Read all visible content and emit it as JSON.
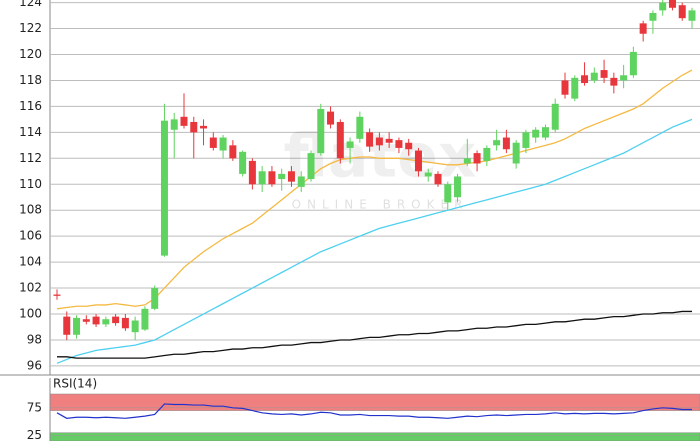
{
  "chart_data": [
    {
      "type": "candlestick",
      "ylim": [
        95.3,
        124.2
      ],
      "yticks": [
        96,
        98,
        100,
        102,
        104,
        106,
        108,
        110,
        112,
        114,
        116,
        118,
        120,
        122,
        124
      ],
      "grid": true,
      "watermark": "flatex",
      "watermark_sub": "ONLINE BROKER",
      "up_color": "#5fd35f",
      "down_color": "#e8373c",
      "open": [
        101.5,
        99.8,
        98.4,
        99.6,
        99.8,
        99.2,
        99.8,
        99.7,
        98.6,
        98.8,
        100.4,
        104.5,
        114.2,
        115.2,
        114.8,
        114.5,
        113.6,
        112.6,
        113.0,
        110.8,
        111.8,
        110.0,
        111.0,
        110.4,
        111.0,
        109.8,
        110.4,
        112.4,
        115.6,
        114.8,
        112.8,
        113.5,
        114.0,
        113.6,
        113.5,
        113.4,
        113.2,
        112.6,
        110.6,
        110.8,
        108.6,
        109.0,
        111.6,
        112.4,
        111.8,
        113.0,
        113.6,
        111.6,
        112.8,
        113.6,
        113.6,
        114.2,
        118.0,
        116.6,
        118.4,
        118.0,
        118.8,
        118.2,
        118.0,
        118.4,
        122.4,
        122.6,
        123.4,
        124.2,
        123.8,
        122.6
      ],
      "high": [
        101.9,
        100.2,
        99.9,
        99.9,
        100.0,
        99.8,
        100.0,
        100.0,
        99.8,
        100.6,
        102.2,
        116.2,
        115.5,
        117.0,
        115.2,
        115.0,
        114.0,
        113.8,
        113.4,
        112.6,
        112.0,
        111.4,
        111.4,
        111.2,
        111.4,
        111.0,
        112.6,
        116.2,
        116.0,
        115.0,
        113.6,
        115.6,
        114.3,
        114.0,
        114.0,
        113.6,
        113.5,
        112.8,
        111.2,
        111.0,
        110.2,
        110.8,
        113.5,
        112.6,
        113.0,
        114.2,
        114.2,
        113.4,
        114.2,
        114.4,
        114.6,
        116.6,
        118.6,
        118.4,
        119.4,
        119.0,
        119.6,
        118.6,
        119.2,
        120.6,
        122.6,
        123.4,
        124.6,
        124.6,
        124.0,
        123.6
      ],
      "low": [
        101.1,
        98.0,
        98.1,
        99.2,
        99.0,
        99.0,
        99.1,
        98.7,
        98.0,
        98.7,
        100.3,
        104.4,
        112.0,
        114.3,
        112.0,
        113.0,
        112.6,
        112.0,
        111.8,
        110.6,
        109.6,
        109.4,
        109.8,
        109.5,
        109.8,
        109.4,
        110.2,
        112.2,
        114.3,
        111.6,
        111.6,
        113.2,
        112.5,
        112.6,
        112.8,
        112.4,
        112.2,
        110.6,
        110.2,
        109.8,
        108.0,
        108.6,
        111.4,
        111.0,
        111.4,
        112.6,
        112.4,
        111.2,
        112.4,
        113.2,
        113.4,
        114.0,
        116.6,
        116.4,
        117.6,
        117.8,
        117.8,
        117.0,
        117.4,
        118.2,
        121.0,
        121.6,
        123.0,
        123.4,
        122.6,
        122.0
      ],
      "close": [
        101.4,
        98.4,
        99.7,
        99.4,
        99.2,
        99.6,
        99.3,
        98.9,
        99.5,
        100.4,
        102.0,
        114.9,
        115.0,
        114.5,
        114.0,
        114.3,
        112.8,
        113.6,
        112.0,
        112.5,
        110.0,
        111.0,
        110.0,
        110.8,
        110.2,
        110.6,
        112.4,
        115.8,
        114.6,
        112.0,
        113.3,
        115.2,
        112.9,
        113.0,
        113.2,
        112.8,
        112.7,
        111.0,
        110.9,
        110.0,
        110.0,
        110.6,
        112.0,
        111.6,
        112.8,
        113.4,
        112.7,
        113.2,
        114.0,
        114.2,
        114.4,
        116.2,
        116.9,
        118.2,
        117.8,
        118.6,
        118.2,
        117.6,
        118.4,
        120.2,
        121.6,
        123.2,
        124.0,
        123.6,
        122.8,
        123.4
      ],
      "series": [
        {
          "color": "#f5b942",
          "values": [
            100.4,
            100.5,
            100.6,
            100.6,
            100.7,
            100.7,
            100.8,
            100.7,
            100.6,
            100.7,
            101.2,
            102.0,
            102.8,
            103.6,
            104.2,
            104.8,
            105.3,
            105.8,
            106.2,
            106.6,
            107.0,
            107.6,
            108.2,
            108.8,
            109.4,
            110.0,
            110.6,
            111.2,
            111.6,
            111.9,
            112.0,
            112.1,
            112.1,
            112.0,
            112.0,
            112.0,
            111.9,
            111.8,
            111.7,
            111.6,
            111.5,
            111.5,
            111.6,
            111.7,
            111.8,
            112.0,
            112.2,
            112.4,
            112.6,
            112.8,
            113.0,
            113.2,
            113.5,
            113.9,
            114.3,
            114.6,
            114.9,
            115.2,
            115.5,
            115.8,
            116.2,
            116.8,
            117.4,
            117.9,
            118.4,
            118.8
          ]
        },
        {
          "color": "#4fd0f0",
          "values": [
            96.2,
            96.5,
            96.8,
            97.0,
            97.2,
            97.3,
            97.4,
            97.5,
            97.6,
            97.8,
            98.0,
            98.4,
            98.8,
            99.2,
            99.6,
            100.0,
            100.4,
            100.8,
            101.2,
            101.6,
            102.0,
            102.4,
            102.8,
            103.2,
            103.6,
            104.0,
            104.4,
            104.8,
            105.1,
            105.4,
            105.7,
            106.0,
            106.3,
            106.6,
            106.8,
            107.0,
            107.2,
            107.4,
            107.6,
            107.8,
            108.0,
            108.2,
            108.4,
            108.6,
            108.8,
            109.0,
            109.2,
            109.4,
            109.6,
            109.8,
            110.0,
            110.3,
            110.6,
            110.9,
            111.2,
            111.5,
            111.8,
            112.1,
            112.4,
            112.8,
            113.2,
            113.6,
            114.0,
            114.4,
            114.7,
            115.0
          ]
        },
        {
          "color": "#111111",
          "values": [
            96.7,
            96.7,
            96.6,
            96.6,
            96.6,
            96.6,
            96.6,
            96.6,
            96.6,
            96.6,
            96.7,
            96.8,
            96.9,
            96.9,
            97.0,
            97.1,
            97.1,
            97.2,
            97.3,
            97.3,
            97.4,
            97.4,
            97.5,
            97.6,
            97.6,
            97.7,
            97.8,
            97.8,
            97.9,
            98.0,
            98.0,
            98.1,
            98.2,
            98.2,
            98.3,
            98.4,
            98.4,
            98.5,
            98.5,
            98.6,
            98.7,
            98.7,
            98.8,
            98.9,
            98.9,
            99.0,
            99.0,
            99.1,
            99.2,
            99.2,
            99.3,
            99.4,
            99.4,
            99.5,
            99.6,
            99.6,
            99.7,
            99.8,
            99.8,
            99.9,
            100.0,
            100.0,
            100.1,
            100.1,
            100.2,
            100.2
          ]
        }
      ]
    },
    {
      "type": "line",
      "title": "RSI(14)",
      "ylim": [
        15,
        100
      ],
      "yticks": [
        25,
        75
      ],
      "bands": [
        {
          "range": [
            70,
            100
          ],
          "color": "#f08080"
        },
        {
          "range": [
            15,
            30
          ],
          "color": "#66cc66"
        }
      ],
      "series": [
        {
          "color": "#2233cc",
          "values": [
            66,
            56,
            58,
            58,
            57,
            58,
            57,
            56,
            58,
            60,
            63,
            82,
            81,
            81,
            80,
            80,
            78,
            78,
            75,
            74,
            70,
            66,
            64,
            63,
            64,
            62,
            64,
            67,
            66,
            62,
            62,
            63,
            61,
            61,
            61,
            60,
            60,
            58,
            58,
            57,
            56,
            58,
            60,
            59,
            61,
            62,
            61,
            62,
            63,
            63,
            64,
            66,
            64,
            65,
            64,
            65,
            65,
            64,
            65,
            66,
            70,
            73,
            75,
            74,
            72,
            72
          ]
        }
      ]
    }
  ]
}
